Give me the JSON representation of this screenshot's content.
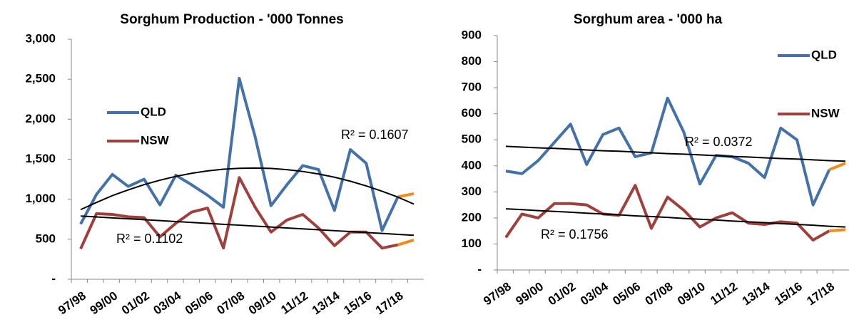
{
  "chart_data": [
    {
      "type": "line",
      "title": "Sorghum Production - '000 Tonnes",
      "categories": [
        "97/98",
        null,
        "99/00",
        null,
        "01/02",
        null,
        "03/04",
        null,
        "05/06",
        null,
        "07/08",
        null,
        "09/10",
        null,
        "11/12",
        null,
        "13/14",
        null,
        "15/16",
        null,
        "17/18",
        null
      ],
      "ylim": [
        0,
        3000
      ],
      "yticks": [
        {
          "value": 0,
          "label": "-"
        },
        500,
        {
          "value": 1000,
          "label": "1,000"
        },
        {
          "value": 1500,
          "label": "1,500"
        },
        {
          "value": 2000,
          "label": "2,000"
        },
        {
          "value": 2500,
          "label": "2,500"
        },
        {
          "value": 3000,
          "label": "3,000"
        }
      ],
      "series": [
        {
          "name": "QLD",
          "color": "#4472a8",
          "values": [
            690,
            1060,
            1310,
            1160,
            1250,
            930,
            1300,
            1180,
            1050,
            900,
            2510,
            1780,
            920,
            1180,
            1420,
            1370,
            860,
            1620,
            1450,
            610,
            1030,
            null
          ]
        },
        {
          "name": "NSW",
          "color": "#a0403c",
          "values": [
            380,
            820,
            810,
            780,
            770,
            530,
            700,
            840,
            890,
            390,
            1270,
            900,
            590,
            740,
            810,
            640,
            420,
            590,
            590,
            390,
            430,
            null
          ]
        },
        {
          "color": "#f08c1e",
          "values": [
            null,
            null,
            null,
            null,
            null,
            null,
            null,
            null,
            null,
            null,
            null,
            null,
            null,
            null,
            null,
            null,
            null,
            null,
            null,
            null,
            1030,
            1070
          ]
        },
        {
          "color": "#f08c1e",
          "values": [
            null,
            null,
            null,
            null,
            null,
            null,
            null,
            null,
            null,
            null,
            null,
            null,
            null,
            null,
            null,
            null,
            null,
            null,
            null,
            null,
            430,
            490
          ]
        }
      ],
      "trendlines": [
        {
          "label": "R² = 0.1607",
          "color": "#000000",
          "values": [
            870,
            960,
            1045,
            1117,
            1182,
            1238,
            1286,
            1324,
            1354,
            1375,
            1387,
            1390,
            1385,
            1370,
            1347,
            1315,
            1275,
            1225,
            1167,
            1100,
            1026,
            940
          ]
        },
        {
          "label": "R² = 0.1102",
          "color": "#000000",
          "values": [
            790,
            779,
            767,
            756,
            744,
            733,
            721,
            710,
            699,
            687,
            676,
            664,
            653,
            641,
            630,
            619,
            607,
            596,
            584,
            573,
            561,
            550
          ]
        }
      ]
    },
    {
      "type": "line",
      "title": "Sorghum area - '000 ha",
      "categories": [
        "97/98",
        null,
        "99/00",
        null,
        "01/02",
        null,
        "03/04",
        null,
        "05/06",
        null,
        "07/08",
        null,
        "09/10",
        null,
        "11/12",
        null,
        "13/14",
        null,
        "15/16",
        null,
        "17/18",
        null
      ],
      "ylim": [
        0,
        900
      ],
      "yticks": [
        {
          "value": 0,
          "label": "-"
        },
        100,
        200,
        300,
        400,
        500,
        600,
        700,
        800,
        900
      ],
      "series": [
        {
          "name": "QLD",
          "color": "#4472a8",
          "values": [
            380,
            370,
            420,
            490,
            560,
            405,
            520,
            545,
            435,
            450,
            660,
            530,
            330,
            440,
            435,
            410,
            355,
            545,
            500,
            250,
            385,
            null
          ]
        },
        {
          "name": "NSW",
          "color": "#a0403c",
          "values": [
            125,
            215,
            200,
            255,
            255,
            250,
            215,
            210,
            325,
            160,
            280,
            230,
            165,
            200,
            220,
            180,
            175,
            185,
            180,
            115,
            150,
            null
          ]
        },
        {
          "color": "#f08c1e",
          "values": [
            null,
            null,
            null,
            null,
            null,
            null,
            null,
            null,
            null,
            null,
            null,
            null,
            null,
            null,
            null,
            null,
            null,
            null,
            null,
            null,
            385,
            410
          ]
        },
        {
          "color": "#f08c1e",
          "values": [
            null,
            null,
            null,
            null,
            null,
            null,
            null,
            null,
            null,
            null,
            null,
            null,
            null,
            null,
            null,
            null,
            null,
            null,
            null,
            null,
            150,
            155
          ]
        }
      ],
      "trendlines": [
        {
          "label": "R² = 0.0372",
          "color": "#000000",
          "values": [
            475,
            472,
            469,
            467,
            464,
            461,
            458,
            456,
            453,
            450,
            447,
            445,
            442,
            439,
            436,
            434,
            431,
            428,
            426,
            423,
            420,
            418
          ]
        },
        {
          "label": "R² = 0.1756",
          "color": "#000000",
          "values": [
            235,
            232,
            228,
            225,
            222,
            218,
            215,
            212,
            208,
            205,
            202,
            198,
            195,
            192,
            188,
            185,
            182,
            178,
            175,
            172,
            168,
            165
          ]
        }
      ]
    }
  ]
}
